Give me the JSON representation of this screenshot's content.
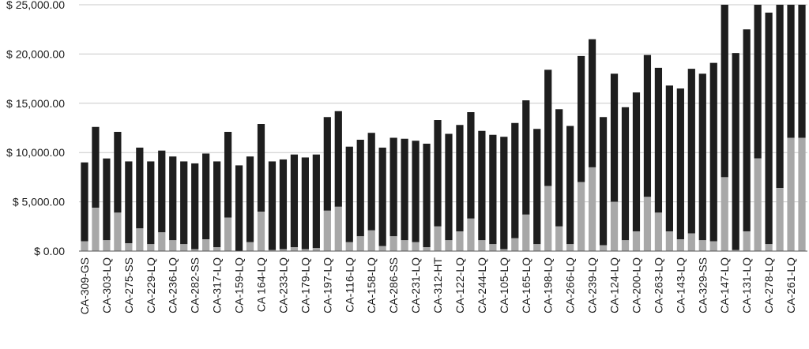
{
  "chart_data": {
    "type": "bar",
    "stacked": true,
    "title": "",
    "xlabel": "",
    "ylabel": "",
    "ylim": [
      0,
      25000
    ],
    "grid": true,
    "legend": "none",
    "y_ticks": [
      {
        "value": 0,
        "label": "$ 0.00"
      },
      {
        "value": 5000,
        "label": "$ 5,000.00"
      },
      {
        "value": 10000,
        "label": "$ 10,000.00"
      },
      {
        "value": 15000,
        "label": "$ 15,000.00"
      },
      {
        "value": 20000,
        "label": "$ 20,000.00"
      },
      {
        "value": 25000,
        "label": "$ 25,000.00"
      }
    ],
    "x_tick_labels": [
      "CA-309-GS",
      "CA-303-LQ",
      "CA-275-SS",
      "CA-229-LQ",
      "CA-236-LQ",
      "CA-282-SS",
      "CA-317-LQ",
      "CA-159-LQ",
      "CA 164-LQ",
      "CA-233-LQ",
      "CA-179-LQ",
      "CA-197-LQ",
      "CA-116-LQ",
      "CA-158-LQ",
      "CA-286-SS",
      "CA-231-LQ",
      "CA-312-HT",
      "CA-122-LQ",
      "CA-244-LQ",
      "CA-105-LQ",
      "CA-165-LQ",
      "CA-198-LQ",
      "CA-266-LQ",
      "CA-239-LQ",
      "CA-124-LQ",
      "CA-200-LQ",
      "CA-263-LQ",
      "CA-143-LQ",
      "CA-329-SS",
      "CA-147-LQ",
      "CA-131-LQ",
      "CA-278-LQ",
      "CA-261-LQ"
    ],
    "bar_count": 66,
    "colors": {
      "bottom": "#a8a8a8",
      "top": "#1e1e1e",
      "grid": "#c8c8c8"
    },
    "series": [
      {
        "values": [
          1000,
          4400,
          1100,
          3900,
          800,
          2300,
          700,
          1900,
          1100,
          700,
          200,
          1200,
          400,
          3400,
          0,
          900,
          4000,
          100,
          200,
          400,
          200,
          300,
          4100,
          4500,
          900,
          1500,
          2100,
          500,
          1500,
          1100,
          900,
          400,
          2500,
          1100,
          2000,
          3300,
          1100,
          700,
          200,
          1300,
          3700,
          700,
          6600,
          2500,
          700,
          7000,
          8500,
          600,
          5000,
          1100,
          2000,
          5500,
          3900,
          2000,
          1200,
          1800,
          1100,
          1000,
          7500,
          100,
          2000,
          9400,
          700,
          6400,
          11500,
          11500
        ]
      },
      {
        "values": [
          8000,
          8200,
          8300,
          8200,
          8300,
          8200,
          8400,
          8300,
          8500,
          8400,
          8700,
          8700,
          8700,
          8700,
          8700,
          8700,
          8900,
          9000,
          9100,
          9400,
          9300,
          9500,
          9500,
          9700,
          9700,
          9800,
          9900,
          10000,
          10000,
          10300,
          10300,
          10500,
          10800,
          10800,
          10800,
          10800,
          11100,
          11100,
          11400,
          11700,
          11600,
          11700,
          11800,
          11900,
          12000,
          12800,
          13000,
          13000,
          13000,
          13500,
          14100,
          14400,
          14700,
          14800,
          15300,
          16700,
          16900,
          18100,
          17500,
          20000,
          20500,
          15600,
          23500,
          18600,
          13500,
          13500
        ]
      }
    ]
  }
}
